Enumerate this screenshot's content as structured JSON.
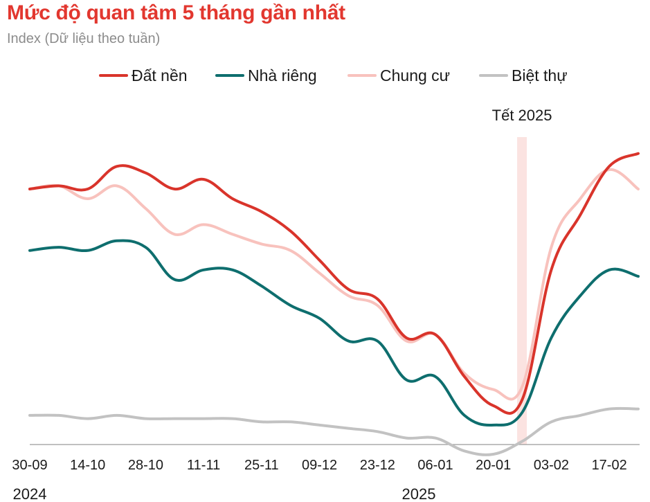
{
  "chart_data": {
    "type": "line",
    "title": "Mức độ quan tâm 5 tháng gần nhất",
    "subtitle": "Index (Dữ liệu theo tuần)",
    "xlabel": "",
    "ylabel": "",
    "ylim": [
      0,
      100
    ],
    "x_ticks": [
      "30-09",
      "14-10",
      "28-10",
      "11-11",
      "25-11",
      "09-12",
      "23-12",
      "06-01",
      "20-01",
      "03-02",
      "17-02"
    ],
    "x_year_labels": [
      {
        "label": "2024",
        "tick": "30-09"
      },
      {
        "label": "2025",
        "tick": "06-01"
      }
    ],
    "x": [
      "30-09",
      "07-10",
      "14-10",
      "21-10",
      "28-10",
      "04-11",
      "11-11",
      "18-11",
      "25-11",
      "02-12",
      "09-12",
      "16-12",
      "23-12",
      "30-12",
      "06-01",
      "13-01",
      "20-01",
      "27-01",
      "03-02",
      "10-02",
      "17-02",
      "24-02"
    ],
    "series": [
      {
        "name": "Đất nền",
        "color": "#d9342b",
        "values": [
          91,
          92,
          91,
          98,
          96,
          91,
          94,
          88,
          84,
          78,
          69,
          60,
          57,
          45,
          46,
          33,
          24,
          26,
          66,
          83,
          98,
          102
        ]
      },
      {
        "name": "Nhà riêng",
        "color": "#0e6e6e",
        "values": [
          72,
          73,
          72,
          75,
          73,
          63,
          66,
          66,
          61,
          55,
          51,
          44,
          44,
          32,
          33,
          21,
          18,
          22,
          45,
          58,
          66,
          64
        ]
      },
      {
        "name": "Chung cư",
        "color": "#f8c2bd",
        "values": [
          91,
          92,
          88,
          92,
          85,
          77,
          80,
          77,
          74,
          72,
          65,
          58,
          55,
          44,
          46,
          34,
          29,
          30,
          73,
          88,
          97,
          91
        ]
      },
      {
        "name": "Biệt thự",
        "color": "#c2c2c2",
        "values": [
          21,
          21,
          20,
          21,
          20,
          20,
          20,
          20,
          19,
          19,
          18,
          17,
          16,
          14,
          14,
          10,
          9,
          13,
          19,
          21,
          23,
          23
        ]
      }
    ],
    "annotations": [
      {
        "label": "Tết 2025",
        "x": "27-01",
        "shaded_band": true,
        "band_color": "#fbe3e1"
      }
    ],
    "legend_position": "top",
    "grid": false
  }
}
